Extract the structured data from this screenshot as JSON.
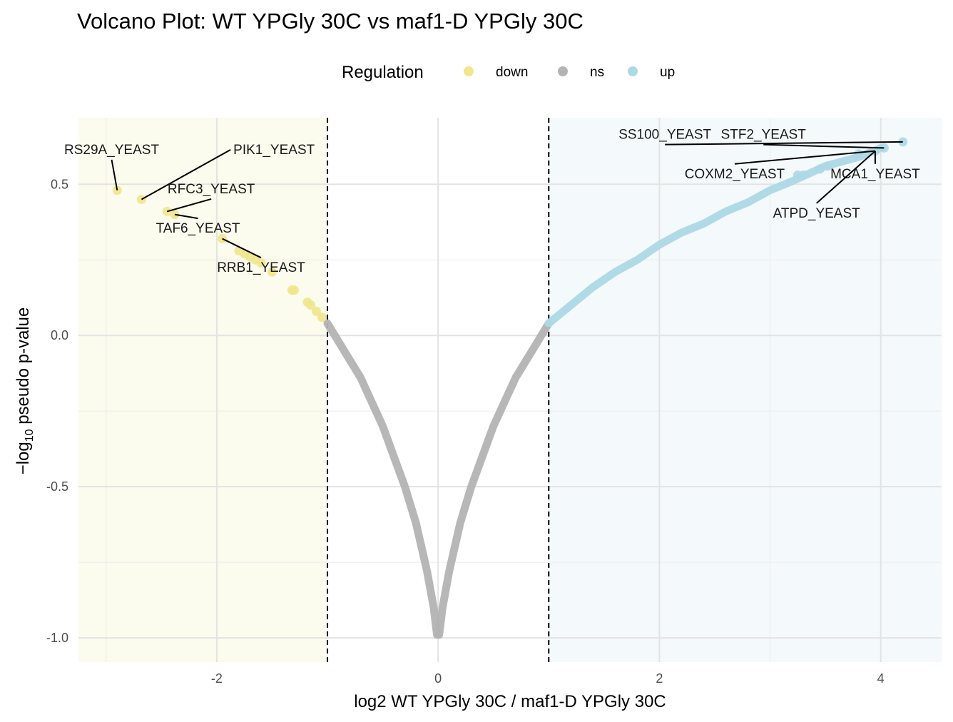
{
  "chart_data": {
    "type": "scatter",
    "title": "Volcano Plot: WT YPGly 30C vs maf1-D YPGly 30C",
    "xlabel": "log2 WT YPGly 30C / maf1-D YPGly 30C",
    "ylabel_prefix": "−log",
    "ylabel_sub": "10",
    "ylabel_suffix": " pseudo p-value",
    "xlim": [
      -3.25,
      4.55
    ],
    "ylim": [
      -1.08,
      0.72
    ],
    "x_ticks": [
      -2,
      0,
      2,
      4
    ],
    "x_tick_labels": [
      "-2",
      "0",
      "2",
      "4"
    ],
    "y_ticks": [
      -1.0,
      -0.5,
      0.0,
      0.5
    ],
    "y_tick_labels": [
      "-1.0",
      "-0.5",
      "0.0",
      "0.5"
    ],
    "thresholds": [
      -1,
      1
    ],
    "grid": true,
    "legend": {
      "title": "Regulation",
      "position": "top",
      "entries": [
        {
          "label": "down",
          "color": "#f0e68c"
        },
        {
          "label": "ns",
          "color": "#b3b3b3"
        },
        {
          "label": "up",
          "color": "#add8e6"
        }
      ]
    },
    "colors": {
      "down": "#f0e68c",
      "ns": "#b3b3b3",
      "up": "#add8e6",
      "down_region": "#fbfbee",
      "up_region": "#f4f9fb"
    },
    "curve": {
      "description_free": true,
      "left_branch": [
        [
          -1.0,
          0.04
        ],
        [
          -0.9,
          -0.02
        ],
        [
          -0.8,
          -0.08
        ],
        [
          -0.7,
          -0.14
        ],
        [
          -0.6,
          -0.22
        ],
        [
          -0.5,
          -0.3
        ],
        [
          -0.4,
          -0.4
        ],
        [
          -0.3,
          -0.5
        ],
        [
          -0.2,
          -0.62
        ],
        [
          -0.1,
          -0.78
        ],
        [
          -0.04,
          -0.9
        ],
        [
          -0.01,
          -0.99
        ]
      ],
      "right_branch": [
        [
          0.01,
          -0.99
        ],
        [
          0.04,
          -0.9
        ],
        [
          0.1,
          -0.78
        ],
        [
          0.2,
          -0.62
        ],
        [
          0.3,
          -0.5
        ],
        [
          0.4,
          -0.4
        ],
        [
          0.5,
          -0.3
        ],
        [
          0.6,
          -0.22
        ],
        [
          0.7,
          -0.14
        ],
        [
          0.8,
          -0.08
        ],
        [
          0.9,
          -0.02
        ],
        [
          1.0,
          0.04
        ]
      ],
      "up_branch": [
        [
          1.0,
          0.04
        ],
        [
          1.2,
          0.1
        ],
        [
          1.4,
          0.16
        ],
        [
          1.6,
          0.21
        ],
        [
          1.8,
          0.25
        ],
        [
          2.0,
          0.3
        ],
        [
          2.2,
          0.34
        ],
        [
          2.4,
          0.37
        ],
        [
          2.6,
          0.41
        ],
        [
          2.8,
          0.44
        ],
        [
          3.0,
          0.48
        ],
        [
          3.2,
          0.51
        ],
        [
          3.5,
          0.56
        ],
        [
          3.8,
          0.59
        ],
        [
          4.0,
          0.62
        ]
      ]
    },
    "down_points": [
      {
        "x": -2.9,
        "y": 0.48
      },
      {
        "x": -2.68,
        "y": 0.45
      },
      {
        "x": -2.45,
        "y": 0.41
      },
      {
        "x": -2.38,
        "y": 0.4
      },
      {
        "x": -1.95,
        "y": 0.32
      },
      {
        "x": -1.8,
        "y": 0.28
      },
      {
        "x": -1.75,
        "y": 0.27
      },
      {
        "x": -1.7,
        "y": 0.26
      },
      {
        "x": -1.65,
        "y": 0.25
      },
      {
        "x": -1.6,
        "y": 0.24
      },
      {
        "x": -1.5,
        "y": 0.21
      },
      {
        "x": -1.32,
        "y": 0.15
      },
      {
        "x": -1.3,
        "y": 0.15
      },
      {
        "x": -1.18,
        "y": 0.11
      },
      {
        "x": -1.15,
        "y": 0.1
      },
      {
        "x": -1.1,
        "y": 0.08
      },
      {
        "x": -1.05,
        "y": 0.06
      }
    ],
    "extra_up_points": [
      {
        "x": 4.2,
        "y": 0.64
      },
      {
        "x": 4.03,
        "y": 0.62
      },
      {
        "x": 3.95,
        "y": 0.61
      },
      {
        "x": 3.8,
        "y": 0.6
      },
      {
        "x": 3.52,
        "y": 0.56
      },
      {
        "x": 3.45,
        "y": 0.55
      },
      {
        "x": 3.3,
        "y": 0.53
      },
      {
        "x": 3.25,
        "y": 0.53
      }
    ],
    "annotations": [
      {
        "label": "RS29A_YEAST",
        "point": [
          -2.9,
          0.48
        ],
        "text_at": [
          -2.95,
          0.6
        ],
        "anchor": "middle"
      },
      {
        "label": "PIK1_YEAST",
        "point": [
          -2.68,
          0.45
        ],
        "text_at": [
          -1.85,
          0.6
        ],
        "anchor": "start"
      },
      {
        "label": "RFC3_YEAST",
        "point": [
          -2.45,
          0.41
        ],
        "text_at": [
          -2.05,
          0.47
        ],
        "anchor": "middle"
      },
      {
        "label": "TAF6_YEAST",
        "point": [
          -2.38,
          0.4
        ],
        "text_at": [
          -2.17,
          0.34
        ],
        "anchor": "middle"
      },
      {
        "label": "RRB1_YEAST",
        "point": [
          -1.95,
          0.32
        ],
        "text_at": [
          -1.6,
          0.21
        ],
        "anchor": "middle"
      },
      {
        "label": "SS100_YEAST",
        "point": [
          4.2,
          0.64
        ],
        "text_at": [
          2.05,
          0.65
        ],
        "anchor": "middle"
      },
      {
        "label": "STF2_YEAST",
        "point": [
          4.03,
          0.62
        ],
        "text_at": [
          2.94,
          0.65
        ],
        "anchor": "middle"
      },
      {
        "label": "COXM2_YEAST",
        "point": [
          3.95,
          0.61
        ],
        "text_at": [
          2.68,
          0.52
        ],
        "anchor": "middle"
      },
      {
        "label": "MCA1_YEAST",
        "point": [
          3.95,
          0.61
        ],
        "text_at": [
          3.95,
          0.52
        ],
        "anchor": "middle"
      },
      {
        "label": "ATPD_YEAST",
        "point": [
          3.95,
          0.61
        ],
        "text_at": [
          3.42,
          0.39
        ],
        "anchor": "middle"
      }
    ]
  }
}
